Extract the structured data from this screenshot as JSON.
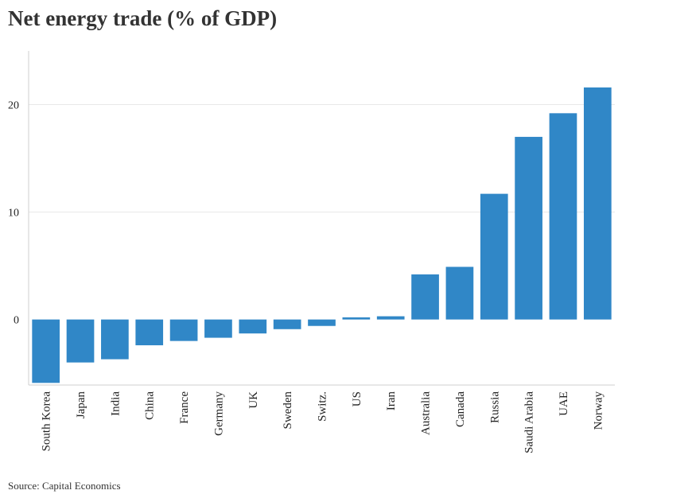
{
  "title": "Net energy trade (% of GDP)",
  "source": "Source: Capital Economics",
  "bar_color": "#3087c7",
  "grid_color": "#e8e8e8",
  "chart_data": {
    "type": "bar",
    "title": "Net energy trade (% of GDP)",
    "xlabel": "",
    "ylabel": "",
    "categories": [
      "South Korea",
      "Japan",
      "India",
      "China",
      "France",
      "Germany",
      "UK",
      "Sweden",
      "Switz.",
      "US",
      "Iran",
      "Australia",
      "Canada",
      "Russia",
      "Saudi Arabia",
      "UAE",
      "Norway"
    ],
    "values": [
      -5.9,
      -4.0,
      -3.7,
      -2.4,
      -2.0,
      -1.7,
      -1.3,
      -0.9,
      -0.6,
      0.2,
      0.3,
      4.2,
      4.9,
      11.7,
      17.0,
      19.2,
      21.6
    ],
    "y_ticks": [
      0,
      10,
      20
    ],
    "ylim": [
      -6.1,
      25
    ],
    "grid": true,
    "legend": "none"
  }
}
